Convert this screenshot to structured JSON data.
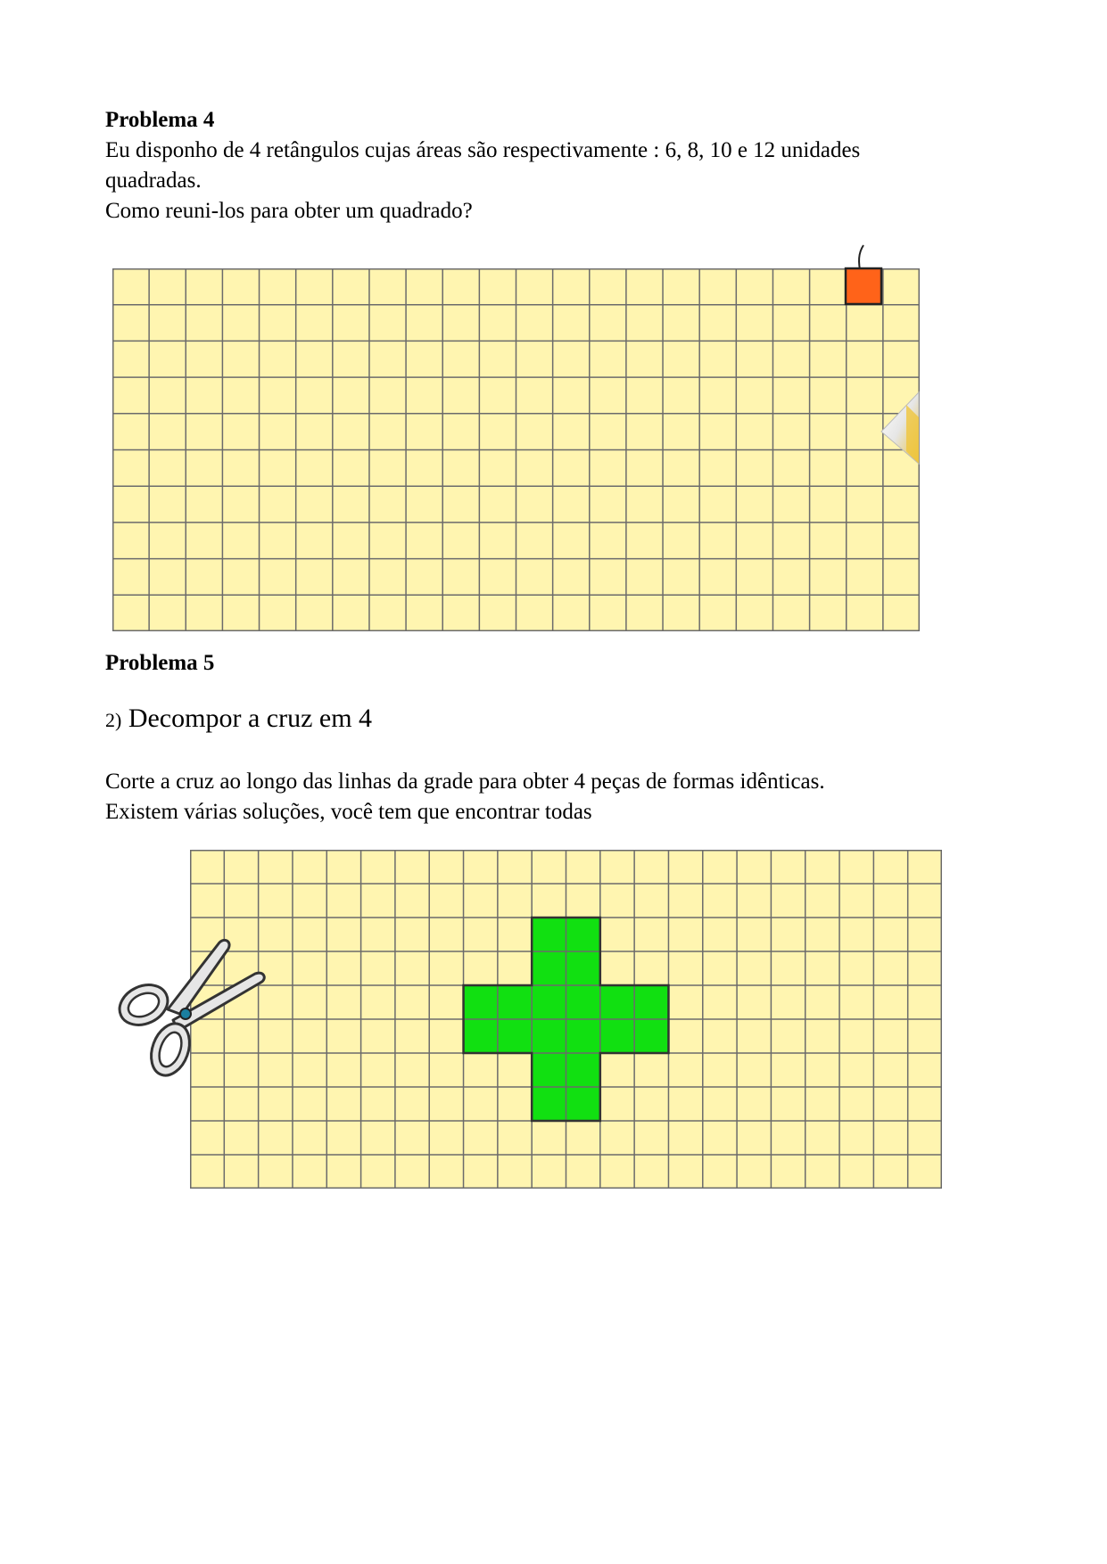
{
  "problem4": {
    "heading": "Problema 4",
    "line1": "Eu disponho de 4 retângulos cujas áreas são respectivamente : 6, 8, 10 e 12 unidades",
    "line2": "quadradas.",
    "line3": "Como reuni-los para obter um quadrado?",
    "grid": {
      "cols": 22,
      "rows": 10,
      "fill": "#FFF5B0",
      "line": "#6b6b6b",
      "marker_color": "#FF6319"
    }
  },
  "problem5": {
    "heading": "Problema 5",
    "sub_number": "2)",
    "sub_title": "Decompor a cruz em 4",
    "line1": "Corte a cruz ao longo das linhas da grade para obter 4 peças de formas idênticas.",
    "line2": "Existem várias soluções, você tem que encontrar todas",
    "grid": {
      "cols": 22,
      "rows": 10,
      "fill": "#FFF5B0",
      "line": "#6b6b6b",
      "cross_color": "#11E011"
    }
  }
}
